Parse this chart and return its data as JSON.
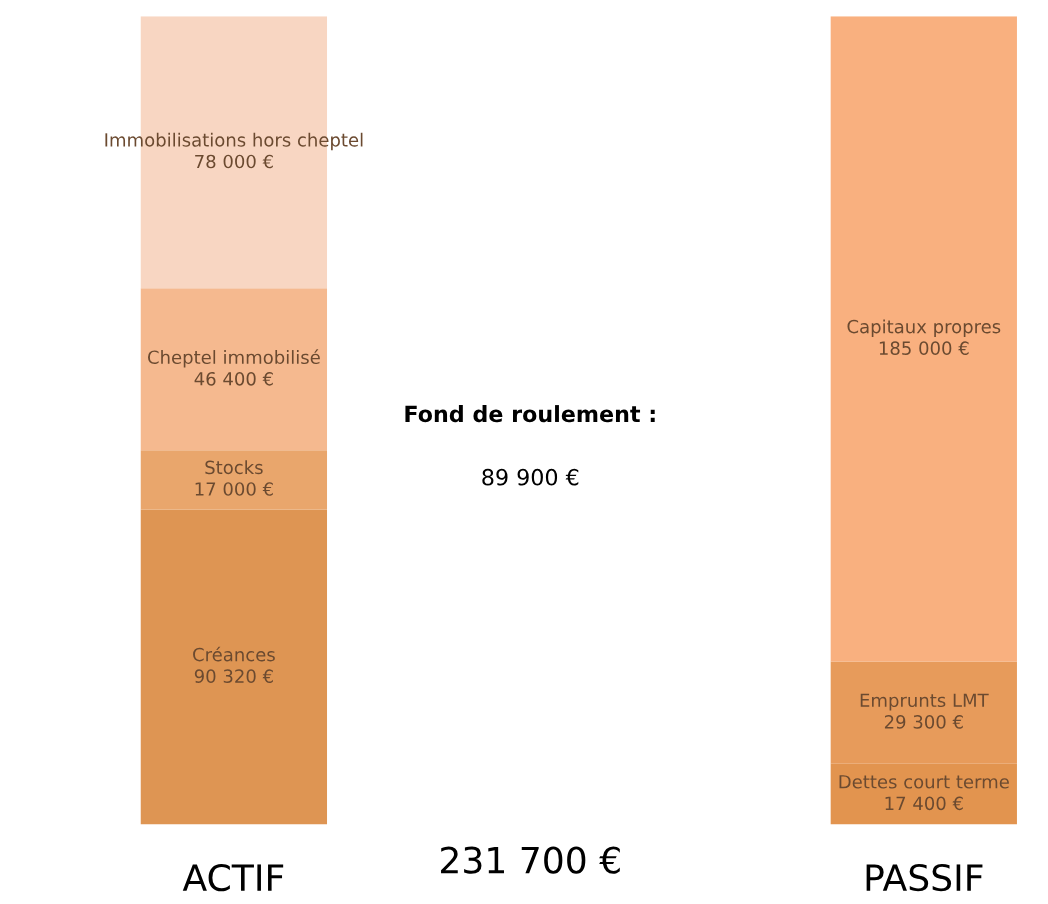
{
  "chart_data": {
    "type": "bar",
    "stacked": true,
    "categories": [
      "ACTIF",
      "PASSIF"
    ],
    "series": [
      {
        "name": "Créances",
        "color": "#de9553",
        "values": [
          90320,
          null
        ],
        "value_labels": [
          "90 320 €",
          null
        ]
      },
      {
        "name": "Stocks",
        "color": "#e9a66c",
        "values": [
          17000,
          null
        ],
        "value_labels": [
          "17 000 €",
          null
        ]
      },
      {
        "name": "Cheptel immobilisé",
        "color": "#f5b98f",
        "values": [
          46400,
          null
        ],
        "value_labels": [
          "46 400 €",
          null
        ]
      },
      {
        "name": "Immobilisations hors cheptel",
        "color": "#f8d6c2",
        "values": [
          78000,
          null
        ],
        "value_labels": [
          "78 000 €",
          null
        ]
      },
      {
        "name": "Dettes court terme",
        "color": "#e2944f",
        "values": [
          null,
          17400
        ],
        "value_labels": [
          null,
          "17 400 €"
        ]
      },
      {
        "name": "Emprunts LMT",
        "color": "#e79b5b",
        "values": [
          null,
          29300
        ],
        "value_labels": [
          null,
          "29 300 €"
        ]
      },
      {
        "name": "Capitaux propres",
        "color": "#f9b07f",
        "values": [
          null,
          185000
        ],
        "value_labels": [
          null,
          "185 000 €"
        ]
      }
    ],
    "annotations": [
      "Fond de roulement :",
      "89 900 €",
      "231 700 €"
    ],
    "legend": false
  }
}
